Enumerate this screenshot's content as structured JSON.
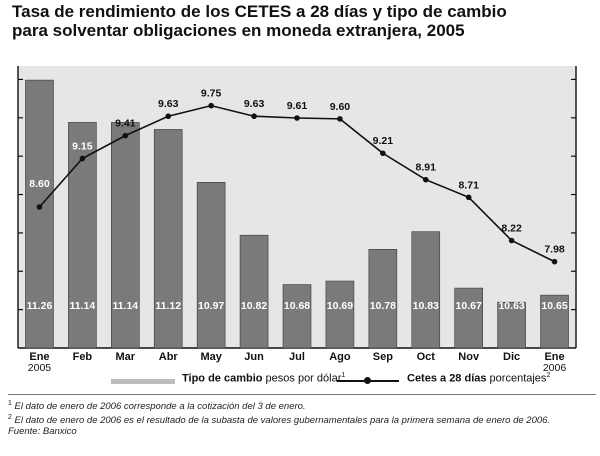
{
  "title_line1": "Tasa de rendimiento de los CETES a 28 días y tipo de cambio",
  "title_line2": "para solventar obligaciones en moneda extranjera, 2005",
  "legend": {
    "bar_bold": "Tipo de cambio",
    "bar_unit": " pesos por dólar",
    "bar_sup": "1",
    "line_bold": "Cetes a 28 días",
    "line_unit": " porcentajes",
    "line_sup": "2"
  },
  "notes": {
    "n1_sup": "1",
    "n1": " El dato de enero de 2006 corresponde a la cotización del 3 de enero.",
    "n2_sup": "2",
    "n2": " El dato de enero de 2006 es el resultado de la subasta de valores gubernamentales para la primera semana de enero de 2006.",
    "source": "Fuente: Banxico"
  },
  "colors": {
    "plot_bg": "#e6e6e6",
    "bar": "#7a7a7a",
    "line": "#111111",
    "legend_bar": "#bdbdbd"
  },
  "chart_data": {
    "type": "bar+line",
    "categories": [
      "Ene",
      "Feb",
      "Mar",
      "Abr",
      "May",
      "Jun",
      "Jul",
      "Ago",
      "Sep",
      "Oct",
      "Nov",
      "Dic",
      "Ene"
    ],
    "category_years": [
      "2005",
      "",
      "",
      "",
      "",
      "",
      "",
      "",
      "",
      "",
      "",
      "",
      "2006"
    ],
    "series": [
      {
        "name": "Tipo de cambio",
        "kind": "bar",
        "axis": "left",
        "values": [
          11.26,
          11.14,
          11.14,
          11.12,
          10.97,
          10.82,
          10.68,
          10.69,
          10.78,
          10.83,
          10.67,
          10.63,
          10.65
        ],
        "labels": [
          "11.26",
          "11.14",
          "11.14",
          "11.12",
          "10.97",
          "10.82",
          "10.68",
          "10.69",
          "10.78",
          "10.83",
          "10.67",
          "10.63",
          "10.65"
        ]
      },
      {
        "name": "Cetes a 28 días",
        "kind": "line",
        "axis": "right",
        "values": [
          8.6,
          9.15,
          9.41,
          9.63,
          9.75,
          9.63,
          9.61,
          9.6,
          9.21,
          8.91,
          8.71,
          8.22,
          7.98
        ],
        "labels": [
          "8.60",
          "9.15",
          "9.41",
          "9.63",
          "9.75",
          "9.63",
          "9.61",
          "9.60",
          "9.21",
          "8.91",
          "8.71",
          "8.22",
          "7.98"
        ]
      }
    ],
    "left_axis_range": [
      10.5,
      11.3
    ],
    "right_axis_range": [
      7.0,
      10.2
    ],
    "axis_ticks": 7
  }
}
